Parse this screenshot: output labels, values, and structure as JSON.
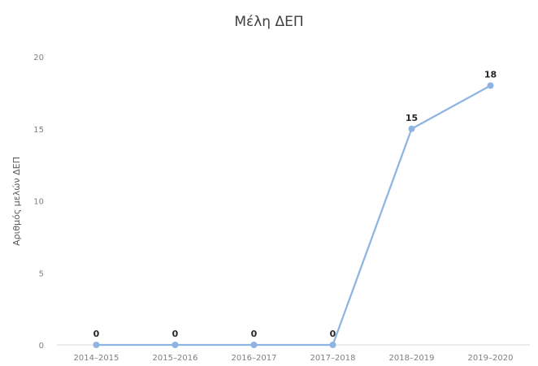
{
  "chart_data": {
    "type": "line",
    "title": "Μέλη ΔΕΠ",
    "xlabel": "",
    "ylabel": "Αριθμός μελών ΔΕΠ",
    "categories": [
      "2014–2015",
      "2015–2016",
      "2016–2017",
      "2017–2018",
      "2018–2019",
      "2019–2020"
    ],
    "series": [
      {
        "values": [
          0,
          0,
          0,
          0,
          15,
          18
        ],
        "color": "#8eb4e3"
      }
    ],
    "data_labels": [
      "0",
      "0",
      "0",
      "0",
      "15",
      "18"
    ],
    "ylim": [
      0,
      20
    ],
    "yticks": [
      0,
      5,
      10,
      15,
      20
    ],
    "ytick_labels": [
      "0",
      "5",
      "10",
      "15",
      "20"
    ],
    "grid": false,
    "legend": "none",
    "axis_color": "#d9d9d9"
  }
}
